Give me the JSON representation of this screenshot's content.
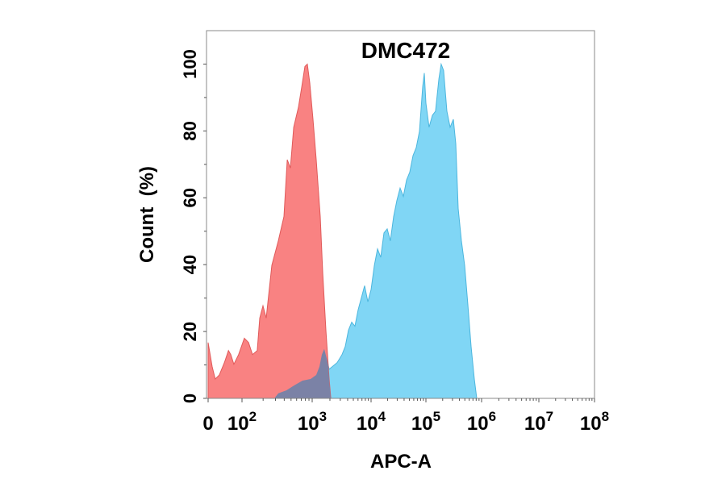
{
  "chart_data": {
    "type": "area",
    "title": "DMC472",
    "xlabel": "APC-A",
    "ylabel": "Count  (%)",
    "x_scale": "biexponential (linear 0 to 10^2, log above)",
    "xlim": [
      0,
      100000000
    ],
    "ylim": [
      0,
      110
    ],
    "x_ticks": [
      {
        "value": 0,
        "base": "0",
        "exp": ""
      },
      {
        "value": 100,
        "base": "10",
        "exp": "2"
      },
      {
        "value": 1000,
        "base": "10",
        "exp": "3"
      },
      {
        "value": 10000,
        "base": "10",
        "exp": "4"
      },
      {
        "value": 100000,
        "base": "10",
        "exp": "5"
      },
      {
        "value": 1000000,
        "base": "10",
        "exp": "6"
      },
      {
        "value": 10000000,
        "base": "10",
        "exp": "7"
      },
      {
        "value": 100000000,
        "base": "10",
        "exp": "8"
      }
    ],
    "y_ticks": [
      0,
      20,
      40,
      60,
      80,
      100
    ],
    "grid": false,
    "legend": "none",
    "series": [
      {
        "color": "#f98282",
        "stroke": "#e05a5a",
        "x": [
          0,
          12,
          21,
          33,
          48,
          60,
          67,
          76,
          90,
          108,
          124,
          141,
          165,
          179,
          199,
          221,
          266,
          329,
          396,
          441,
          490,
          545,
          638,
          710,
          789,
          854,
          924,
          1032,
          1170,
          1370,
          1510,
          1710,
          1940,
          2070
        ],
        "y": [
          16.7,
          9.5,
          5.8,
          7,
          10.7,
          14.3,
          13.1,
          10.2,
          13.1,
          18,
          16.7,
          13.1,
          14.3,
          24,
          27.7,
          24,
          39.8,
          47.1,
          54.4,
          71.4,
          68.9,
          81.1,
          87.1,
          93.2,
          99.3,
          100,
          94.4,
          83.5,
          71.4,
          54.4,
          37.4,
          20.4,
          5.8,
          0
        ]
      },
      {
        "color": "#80d6f5",
        "stroke": "#4cb6de",
        "overlap_color": "#7b82a6",
        "x": [
          288,
          329,
          428,
          558,
          728,
          949,
          1170,
          1330,
          1460,
          1600,
          1770,
          1940,
          2200,
          2660,
          3210,
          3650,
          4130,
          4690,
          5320,
          6040,
          6850,
          7770,
          8810,
          10000,
          11500,
          13100,
          15000,
          17200,
          19700,
          22500,
          25800,
          29600,
          33800,
          38700,
          44400,
          50800,
          58200,
          66600,
          76200,
          87300,
          93500,
          100000,
          114000,
          131000,
          149000,
          171000,
          188000,
          208000,
          238000,
          272000,
          311000,
          344000,
          380000,
          434000,
          497000,
          568000,
          649000,
          741000,
          819000
        ],
        "y": [
          0,
          1.5,
          2.4,
          3.9,
          5.3,
          5.8,
          7,
          9.5,
          13.1,
          14.8,
          11.9,
          8.7,
          9.5,
          10.7,
          13.1,
          15.5,
          20.4,
          22.8,
          21.6,
          26.5,
          30.1,
          33.7,
          28.9,
          32.5,
          39.8,
          44.7,
          42.2,
          49.5,
          50.7,
          47.1,
          54.4,
          59.2,
          62.9,
          60.4,
          65.3,
          67.7,
          72.6,
          75,
          79.9,
          93.2,
          97.3,
          88.3,
          81.1,
          84.7,
          85.9,
          95.6,
          100,
          98.1,
          85.9,
          81.1,
          83.5,
          76.2,
          56.8,
          47.1,
          39.8,
          27.7,
          15.5,
          5.8,
          0
        ]
      }
    ]
  }
}
